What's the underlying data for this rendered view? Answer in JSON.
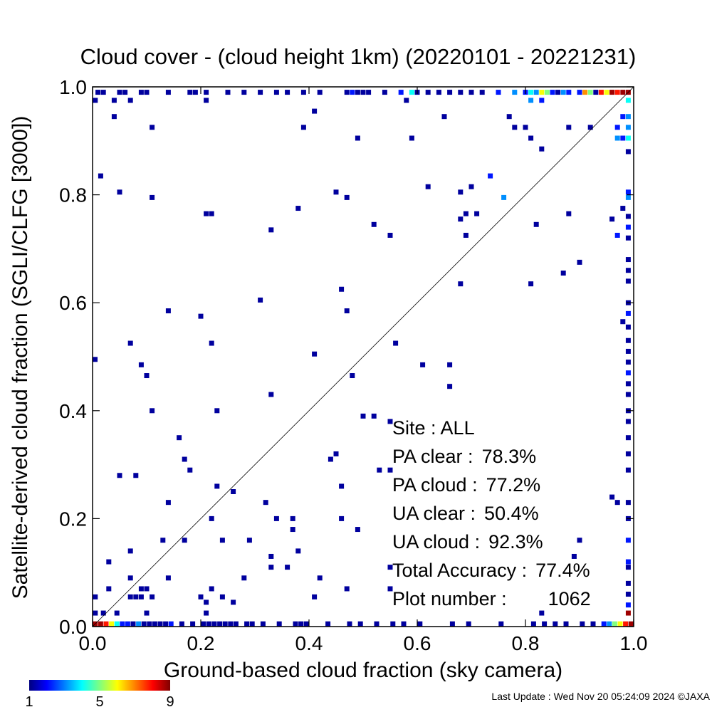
{
  "chart_data": {
    "type": "heatmap",
    "title": "Cloud cover - (cloud height 1km)  (20220101 - 20221231)",
    "xlabel": "Ground-based cloud fraction (sky camera)",
    "ylabel": "Satellite-derived cloud fraction (SGLI/CLFG [3000])",
    "xlim": [
      0.0,
      1.0
    ],
    "ylim": [
      0.0,
      1.0
    ],
    "xticks": [
      "0.0",
      "0.2",
      "0.4",
      "0.6",
      "0.8",
      "1.0"
    ],
    "yticks": [
      "0.0",
      "0.2",
      "0.4",
      "0.6",
      "0.8",
      "1.0"
    ],
    "grid": false,
    "reference_line": "y = x",
    "colorbar": {
      "ticks": [
        "1",
        "5",
        "9"
      ],
      "min": 1,
      "max": 9
    },
    "stats": [
      {
        "label": "Site : ALL",
        "value": ""
      },
      {
        "label": "PA clear :",
        "value": "78.3%"
      },
      {
        "label": "PA cloud :",
        "value": "77.2%"
      },
      {
        "label": "UA clear :",
        "value": "50.4%"
      },
      {
        "label": "UA cloud :",
        "value": "92.3%"
      },
      {
        "label": "Total Accuracy :",
        "value": "77.4%"
      },
      {
        "label": "Plot number :",
        "value": "1062"
      }
    ],
    "points": [
      [
        0.01,
        0.99,
        1
      ],
      [
        0.02,
        0.99,
        1
      ],
      [
        0.05,
        0.99,
        1
      ],
      [
        0.06,
        0.99,
        1
      ],
      [
        0.09,
        0.99,
        1
      ],
      [
        0.1,
        0.99,
        1
      ],
      [
        0.14,
        0.99,
        1
      ],
      [
        0.18,
        0.99,
        1
      ],
      [
        0.19,
        0.99,
        1
      ],
      [
        0.21,
        0.99,
        1
      ],
      [
        0.25,
        0.99,
        1
      ],
      [
        0.28,
        0.99,
        1
      ],
      [
        0.31,
        0.99,
        1
      ],
      [
        0.34,
        0.99,
        1
      ],
      [
        0.36,
        0.99,
        1
      ],
      [
        0.39,
        0.99,
        1
      ],
      [
        0.42,
        0.99,
        1
      ],
      [
        0.47,
        0.99,
        1
      ],
      [
        0.48,
        0.99,
        2
      ],
      [
        0.49,
        0.99,
        1
      ],
      [
        0.5,
        0.99,
        1
      ],
      [
        0.51,
        0.99,
        1
      ],
      [
        0.54,
        0.99,
        1
      ],
      [
        0.57,
        0.99,
        2
      ],
      [
        0.59,
        0.99,
        4
      ],
      [
        0.6,
        0.99,
        1
      ],
      [
        0.62,
        0.99,
        1
      ],
      [
        0.64,
        0.99,
        1
      ],
      [
        0.66,
        0.99,
        1
      ],
      [
        0.68,
        0.99,
        1
      ],
      [
        0.7,
        0.99,
        1
      ],
      [
        0.72,
        0.99,
        1
      ],
      [
        0.75,
        0.99,
        2
      ],
      [
        0.78,
        0.99,
        3
      ],
      [
        0.8,
        0.99,
        2
      ],
      [
        0.81,
        0.99,
        4
      ],
      [
        0.82,
        0.99,
        3
      ],
      [
        0.83,
        0.99,
        6
      ],
      [
        0.84,
        0.99,
        5
      ],
      [
        0.85,
        0.99,
        2
      ],
      [
        0.86,
        0.99,
        1
      ],
      [
        0.87,
        0.99,
        3
      ],
      [
        0.88,
        0.99,
        2
      ],
      [
        0.9,
        0.99,
        2
      ],
      [
        0.91,
        0.99,
        7
      ],
      [
        0.92,
        0.99,
        5
      ],
      [
        0.93,
        0.99,
        1
      ],
      [
        0.94,
        0.99,
        8
      ],
      [
        0.95,
        0.99,
        6
      ],
      [
        0.96,
        0.99,
        9
      ],
      [
        0.97,
        0.99,
        8
      ],
      [
        0.98,
        0.99,
        9
      ],
      [
        0.99,
        0.99,
        9
      ],
      [
        0.005,
        0.975,
        1
      ],
      [
        0.04,
        0.975,
        1
      ],
      [
        0.07,
        0.975,
        1
      ],
      [
        0.21,
        0.975,
        1
      ],
      [
        0.58,
        0.975,
        1
      ],
      [
        0.81,
        0.975,
        3
      ],
      [
        0.83,
        0.975,
        2
      ],
      [
        0.99,
        0.975,
        4
      ],
      [
        0.04,
        0.945,
        1
      ],
      [
        0.41,
        0.955,
        1
      ],
      [
        0.65,
        0.945,
        1
      ],
      [
        0.77,
        0.945,
        1
      ],
      [
        0.98,
        0.945,
        2
      ],
      [
        0.99,
        0.945,
        3
      ],
      [
        0.11,
        0.925,
        1
      ],
      [
        0.39,
        0.925,
        1
      ],
      [
        0.78,
        0.925,
        1
      ],
      [
        0.8,
        0.925,
        1
      ],
      [
        0.88,
        0.925,
        1
      ],
      [
        0.92,
        0.925,
        1
      ],
      [
        0.97,
        0.925,
        2
      ],
      [
        0.99,
        0.925,
        3
      ],
      [
        0.49,
        0.905,
        1
      ],
      [
        0.59,
        0.905,
        1
      ],
      [
        0.81,
        0.905,
        1
      ],
      [
        0.97,
        0.905,
        3
      ],
      [
        0.98,
        0.905,
        2
      ],
      [
        0.99,
        0.905,
        4
      ],
      [
        0.83,
        0.885,
        1
      ],
      [
        0.99,
        0.88,
        1
      ],
      [
        0.015,
        0.835,
        1
      ],
      [
        0.735,
        0.835,
        2
      ],
      [
        0.62,
        0.815,
        1
      ],
      [
        0.7,
        0.815,
        1
      ],
      [
        0.05,
        0.805,
        1
      ],
      [
        0.45,
        0.805,
        1
      ],
      [
        0.68,
        0.805,
        1
      ],
      [
        0.99,
        0.805,
        2
      ],
      [
        0.11,
        0.795,
        1
      ],
      [
        0.47,
        0.795,
        1
      ],
      [
        0.76,
        0.795,
        3
      ],
      [
        0.99,
        0.795,
        3
      ],
      [
        0.38,
        0.775,
        1
      ],
      [
        0.98,
        0.775,
        1
      ],
      [
        0.21,
        0.765,
        1
      ],
      [
        0.22,
        0.765,
        1
      ],
      [
        0.69,
        0.765,
        1
      ],
      [
        0.71,
        0.765,
        1
      ],
      [
        0.88,
        0.765,
        1
      ],
      [
        0.99,
        0.76,
        1
      ],
      [
        0.52,
        0.745,
        1
      ],
      [
        0.68,
        0.755,
        1
      ],
      [
        0.82,
        0.745,
        1
      ],
      [
        0.96,
        0.755,
        1
      ],
      [
        0.99,
        0.74,
        2
      ],
      [
        0.33,
        0.735,
        1
      ],
      [
        0.55,
        0.725,
        1
      ],
      [
        0.69,
        0.725,
        1
      ],
      [
        0.97,
        0.725,
        2
      ],
      [
        0.99,
        0.72,
        1
      ],
      [
        0.99,
        0.68,
        1
      ],
      [
        0.9,
        0.675,
        1
      ],
      [
        0.87,
        0.655,
        1
      ],
      [
        0.99,
        0.66,
        1
      ],
      [
        0.68,
        0.635,
        1
      ],
      [
        0.81,
        0.635,
        1
      ],
      [
        0.99,
        0.64,
        1
      ],
      [
        0.46,
        0.625,
        1
      ],
      [
        0.31,
        0.605,
        1
      ],
      [
        0.99,
        0.6,
        1
      ],
      [
        0.14,
        0.585,
        1
      ],
      [
        0.47,
        0.585,
        1
      ],
      [
        0.2,
        0.575,
        1
      ],
      [
        0.99,
        0.58,
        2
      ],
      [
        0.98,
        0.565,
        1
      ],
      [
        0.99,
        0.555,
        1
      ],
      [
        0.07,
        0.525,
        1
      ],
      [
        0.22,
        0.525,
        1
      ],
      [
        0.56,
        0.525,
        1
      ],
      [
        0.99,
        0.53,
        1
      ],
      [
        0.41,
        0.505,
        1
      ],
      [
        0.99,
        0.51,
        1
      ],
      [
        0.0,
        0.495,
        1
      ],
      [
        0.09,
        0.485,
        1
      ],
      [
        0.61,
        0.485,
        1
      ],
      [
        0.66,
        0.485,
        1
      ],
      [
        0.99,
        0.49,
        1
      ],
      [
        0.1,
        0.465,
        1
      ],
      [
        0.48,
        0.465,
        1
      ],
      [
        0.99,
        0.47,
        2
      ],
      [
        0.66,
        0.445,
        1
      ],
      [
        0.99,
        0.45,
        1
      ],
      [
        0.33,
        0.43,
        1
      ],
      [
        0.99,
        0.43,
        1
      ],
      [
        0.11,
        0.4,
        1
      ],
      [
        0.23,
        0.4,
        1
      ],
      [
        0.99,
        0.4,
        1
      ],
      [
        0.5,
        0.39,
        1
      ],
      [
        0.52,
        0.39,
        1
      ],
      [
        0.99,
        0.38,
        1
      ],
      [
        0.55,
        0.38,
        1
      ],
      [
        0.16,
        0.35,
        1
      ],
      [
        0.99,
        0.35,
        1
      ],
      [
        0.17,
        0.31,
        1
      ],
      [
        0.44,
        0.31,
        1
      ],
      [
        0.45,
        0.32,
        1
      ],
      [
        0.99,
        0.32,
        1
      ],
      [
        0.18,
        0.29,
        1
      ],
      [
        0.53,
        0.29,
        1
      ],
      [
        0.55,
        0.29,
        1
      ],
      [
        0.99,
        0.29,
        1
      ],
      [
        0.05,
        0.28,
        1
      ],
      [
        0.08,
        0.28,
        1
      ],
      [
        0.23,
        0.26,
        1
      ],
      [
        0.46,
        0.26,
        1
      ],
      [
        0.26,
        0.25,
        1
      ],
      [
        0.96,
        0.24,
        1
      ],
      [
        0.97,
        0.23,
        1
      ],
      [
        0.99,
        0.23,
        1
      ],
      [
        0.14,
        0.23,
        1
      ],
      [
        0.32,
        0.23,
        1
      ],
      [
        0.22,
        0.2,
        1
      ],
      [
        0.34,
        0.2,
        1
      ],
      [
        0.37,
        0.2,
        1
      ],
      [
        0.46,
        0.2,
        1
      ],
      [
        0.99,
        0.2,
        1
      ],
      [
        0.37,
        0.18,
        1
      ],
      [
        0.49,
        0.18,
        1
      ],
      [
        0.13,
        0.16,
        1
      ],
      [
        0.17,
        0.16,
        1
      ],
      [
        0.24,
        0.16,
        1
      ],
      [
        0.29,
        0.16,
        1
      ],
      [
        0.9,
        0.16,
        1
      ],
      [
        0.99,
        0.16,
        2
      ],
      [
        0.07,
        0.14,
        1
      ],
      [
        0.38,
        0.14,
        1
      ],
      [
        0.33,
        0.13,
        1
      ],
      [
        0.89,
        0.13,
        1
      ],
      [
        0.03,
        0.12,
        1
      ],
      [
        0.33,
        0.11,
        1
      ],
      [
        0.36,
        0.11,
        1
      ],
      [
        0.55,
        0.11,
        1
      ],
      [
        0.99,
        0.12,
        2
      ],
      [
        0.99,
        0.11,
        1
      ],
      [
        0.07,
        0.09,
        1
      ],
      [
        0.14,
        0.09,
        1
      ],
      [
        0.28,
        0.09,
        1
      ],
      [
        0.42,
        0.09,
        1
      ],
      [
        0.03,
        0.07,
        1
      ],
      [
        0.09,
        0.07,
        1
      ],
      [
        0.1,
        0.07,
        1
      ],
      [
        0.22,
        0.07,
        1
      ],
      [
        0.47,
        0.07,
        1
      ],
      [
        0.55,
        0.07,
        1
      ],
      [
        0.99,
        0.08,
        1
      ],
      [
        0.005,
        0.055,
        1
      ],
      [
        0.07,
        0.055,
        1
      ],
      [
        0.08,
        0.055,
        1
      ],
      [
        0.09,
        0.055,
        1
      ],
      [
        0.11,
        0.055,
        1
      ],
      [
        0.2,
        0.055,
        1
      ],
      [
        0.24,
        0.055,
        1
      ],
      [
        0.41,
        0.055,
        1
      ],
      [
        0.99,
        0.06,
        1
      ],
      [
        0.21,
        0.045,
        1
      ],
      [
        0.26,
        0.045,
        1
      ],
      [
        0.99,
        0.04,
        2
      ],
      [
        0.005,
        0.025,
        1
      ],
      [
        0.02,
        0.025,
        1
      ],
      [
        0.045,
        0.025,
        1
      ],
      [
        0.1,
        0.025,
        1
      ],
      [
        0.21,
        0.025,
        1
      ],
      [
        0.83,
        0.025,
        1
      ],
      [
        0.99,
        0.025,
        9
      ],
      [
        0.005,
        0.005,
        9
      ],
      [
        0.015,
        0.005,
        9
      ],
      [
        0.025,
        0.005,
        8
      ],
      [
        0.035,
        0.005,
        6
      ],
      [
        0.045,
        0.005,
        4
      ],
      [
        0.055,
        0.005,
        2
      ],
      [
        0.065,
        0.005,
        2
      ],
      [
        0.075,
        0.005,
        1
      ],
      [
        0.085,
        0.005,
        3
      ],
      [
        0.095,
        0.005,
        1
      ],
      [
        0.105,
        0.005,
        1
      ],
      [
        0.115,
        0.005,
        1
      ],
      [
        0.125,
        0.005,
        1
      ],
      [
        0.135,
        0.005,
        1
      ],
      [
        0.145,
        0.005,
        2
      ],
      [
        0.165,
        0.005,
        1
      ],
      [
        0.185,
        0.005,
        1
      ],
      [
        0.205,
        0.005,
        1
      ],
      [
        0.215,
        0.005,
        1
      ],
      [
        0.225,
        0.005,
        1
      ],
      [
        0.235,
        0.005,
        1
      ],
      [
        0.245,
        0.005,
        1
      ],
      [
        0.255,
        0.005,
        1
      ],
      [
        0.265,
        0.005,
        1
      ],
      [
        0.285,
        0.005,
        1
      ],
      [
        0.295,
        0.005,
        1
      ],
      [
        0.315,
        0.005,
        1
      ],
      [
        0.345,
        0.005,
        1
      ],
      [
        0.375,
        0.005,
        1
      ],
      [
        0.385,
        0.005,
        1
      ],
      [
        0.395,
        0.005,
        1
      ],
      [
        0.435,
        0.005,
        1
      ],
      [
        0.475,
        0.005,
        1
      ],
      [
        0.495,
        0.005,
        1
      ],
      [
        0.525,
        0.005,
        1
      ],
      [
        0.555,
        0.005,
        1
      ],
      [
        0.575,
        0.005,
        1
      ],
      [
        0.605,
        0.005,
        1
      ],
      [
        0.665,
        0.005,
        1
      ],
      [
        0.695,
        0.005,
        1
      ],
      [
        0.755,
        0.005,
        1
      ],
      [
        0.815,
        0.005,
        1
      ],
      [
        0.835,
        0.005,
        1
      ],
      [
        0.855,
        0.005,
        1
      ],
      [
        0.875,
        0.005,
        1
      ],
      [
        0.905,
        0.005,
        1
      ],
      [
        0.925,
        0.005,
        1
      ],
      [
        0.945,
        0.005,
        2
      ],
      [
        0.955,
        0.005,
        3
      ],
      [
        0.965,
        0.005,
        5
      ],
      [
        0.975,
        0.005,
        6
      ],
      [
        0.985,
        0.005,
        8
      ],
      [
        0.995,
        0.005,
        9
      ]
    ]
  },
  "footer": {
    "last_update": "Last Update : Wed Nov 20 05:24:09 2024  ©JAXA"
  },
  "colors": {
    "axis": "#000000",
    "reference_line": "#000000"
  }
}
